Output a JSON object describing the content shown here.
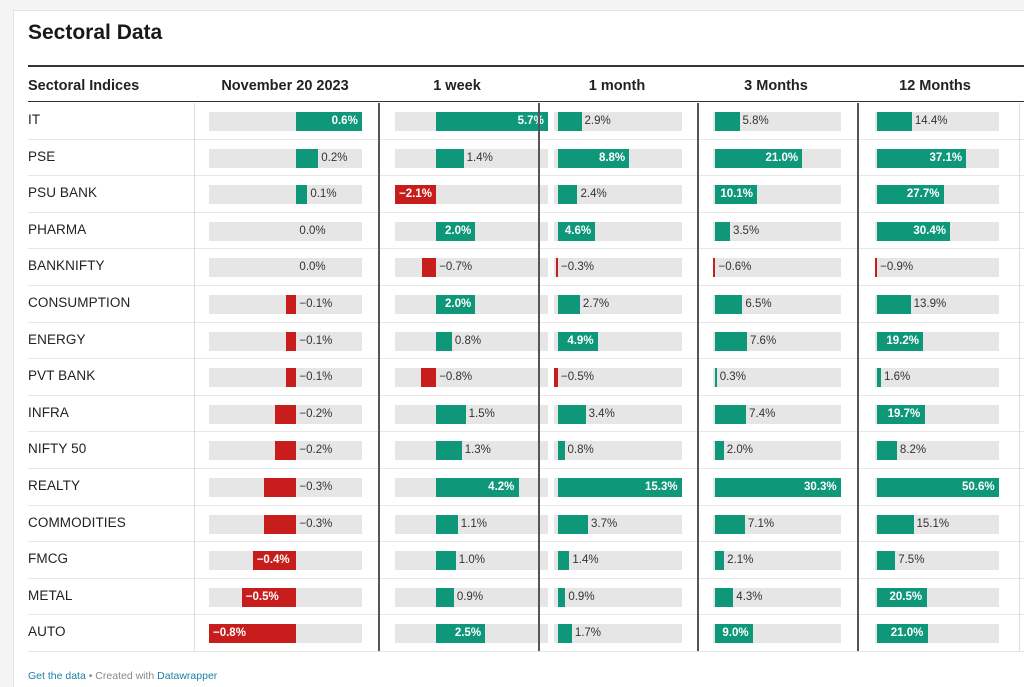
{
  "title": "Sectoral Data",
  "colors": {
    "positive": "#0f977a",
    "negative": "#c71e1d",
    "track": "#e6e6e6"
  },
  "footer": {
    "get_data": "Get the data",
    "separator": " • Created with ",
    "created_with": "Datawrapper"
  },
  "chart_data": {
    "type": "table",
    "row_header": "Sectoral Indices",
    "columns": [
      "November 20 2023",
      "1 week",
      "1 month",
      "3 Months",
      "12 Months"
    ],
    "column_ranges": [
      [
        -0.8,
        0.6
      ],
      [
        -2.1,
        5.7
      ],
      [
        -0.5,
        15.3
      ],
      [
        -0.6,
        30.3
      ],
      [
        -0.9,
        50.6
      ]
    ],
    "value_suffix": "%",
    "rows": [
      {
        "label": "IT",
        "values": [
          0.6,
          5.7,
          2.9,
          5.8,
          14.4
        ]
      },
      {
        "label": "PSE",
        "values": [
          0.2,
          1.4,
          8.8,
          21.0,
          37.1
        ]
      },
      {
        "label": "PSU BANK",
        "values": [
          0.1,
          -2.1,
          2.4,
          10.1,
          27.7
        ]
      },
      {
        "label": "PHARMA",
        "values": [
          0.0,
          2.0,
          4.6,
          3.5,
          30.4
        ]
      },
      {
        "label": "BANKNIFTY",
        "values": [
          0.0,
          -0.7,
          -0.3,
          -0.6,
          -0.9
        ]
      },
      {
        "label": "CONSUMPTION",
        "values": [
          -0.1,
          2.0,
          2.7,
          6.5,
          13.9
        ]
      },
      {
        "label": "ENERGY",
        "values": [
          -0.1,
          0.8,
          4.9,
          7.6,
          19.2
        ]
      },
      {
        "label": "PVT BANK",
        "values": [
          -0.1,
          -0.8,
          -0.5,
          0.3,
          1.6
        ]
      },
      {
        "label": "INFRA",
        "values": [
          -0.2,
          1.5,
          3.4,
          7.4,
          19.7
        ]
      },
      {
        "label": "NIFTY 50",
        "values": [
          -0.2,
          1.3,
          0.8,
          2.0,
          8.2
        ]
      },
      {
        "label": "REALTY",
        "values": [
          -0.3,
          4.2,
          15.3,
          30.3,
          50.6
        ]
      },
      {
        "label": "COMMODITIES",
        "values": [
          -0.3,
          1.1,
          3.7,
          7.1,
          15.1
        ]
      },
      {
        "label": "FMCG",
        "values": [
          -0.4,
          1.0,
          1.4,
          2.1,
          7.5
        ]
      },
      {
        "label": "METAL",
        "values": [
          -0.5,
          0.9,
          0.9,
          4.3,
          20.5
        ]
      },
      {
        "label": "AUTO",
        "values": [
          -0.8,
          2.5,
          1.7,
          9.0,
          21.0
        ]
      }
    ]
  }
}
